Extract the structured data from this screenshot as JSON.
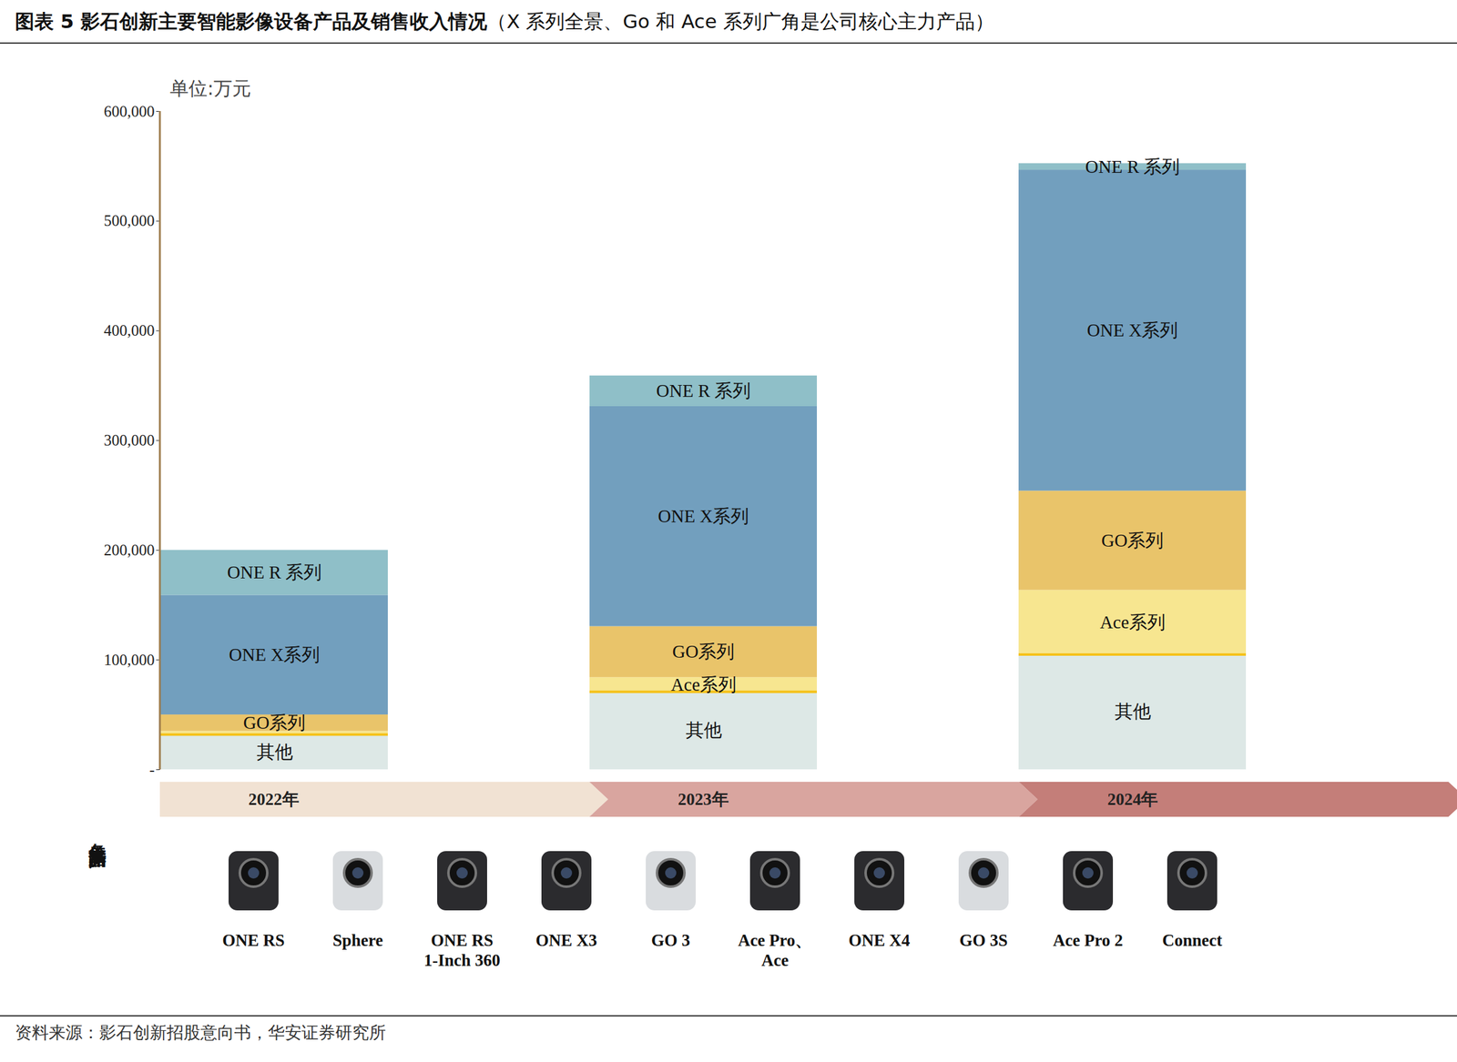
{
  "chart_data": {
    "type": "bar",
    "stacked": true,
    "title": "图表 5 影石创新主要智能影像设备产品及销售收入情况",
    "subtitle": "（X 系列全景、Go 和 Ace 系列广角是公司核心主力产品）",
    "y_label": "单位:万元",
    "categories": [
      "2022年",
      "2023年",
      "2024年"
    ],
    "series": [
      {
        "name": "其他",
        "color": "#dde8e6",
        "values": [
          32000,
          71000,
          105000
        ],
        "labels": [
          "其他",
          "其他",
          "其他"
        ]
      },
      {
        "name": "Ace系列",
        "color": "#f7e690",
        "values": [
          3000,
          13000,
          58500
        ],
        "labels": [
          null,
          "Ace系列",
          "Ace系列"
        ]
      },
      {
        "name": "GO系列",
        "color": "#e9c46a",
        "values": [
          15000,
          46500,
          90500
        ],
        "labels": [
          "GO系列",
          "GO系列",
          "GO系列"
        ]
      },
      {
        "name": "ONE X系列",
        "color": "#729fbe",
        "values": [
          109000,
          200500,
          292500
        ],
        "labels": [
          "ONE X系列",
          "ONE X系列",
          "ONE X系列"
        ]
      },
      {
        "name": "ONE R 系列",
        "color": "#8fbfc8",
        "values": [
          41000,
          28000,
          6000
        ],
        "labels": [
          "ONE R 系列",
          "ONE R 系列",
          "ONE R 系列"
        ]
      }
    ],
    "ylim": [
      0,
      600000
    ],
    "yticks": [
      {
        "value": 0,
        "label": "-"
      },
      {
        "value": 100000,
        "label": "100,000"
      },
      {
        "value": 200000,
        "label": "200,000"
      },
      {
        "value": 300000,
        "label": "300,000"
      },
      {
        "value": 400000,
        "label": "400,000"
      },
      {
        "value": 500000,
        "label": "500,000"
      },
      {
        "value": 600000,
        "label": "600,000"
      }
    ],
    "grid": false,
    "products_caption": "各年推出新产品",
    "products": [
      [
        "ONE RS"
      ],
      [
        "Sphere"
      ],
      [
        "ONE RS",
        "1-Inch 360"
      ],
      [
        "ONE X3"
      ],
      [
        "GO 3"
      ],
      [
        "Ace Pro、",
        "Ace"
      ],
      [
        "ONE X4"
      ],
      [
        "GO 3S"
      ],
      [
        "Ace Pro 2"
      ],
      [
        "Connect"
      ]
    ],
    "source": "资料来源：影石创新招股意向书，华安证券研究所"
  }
}
